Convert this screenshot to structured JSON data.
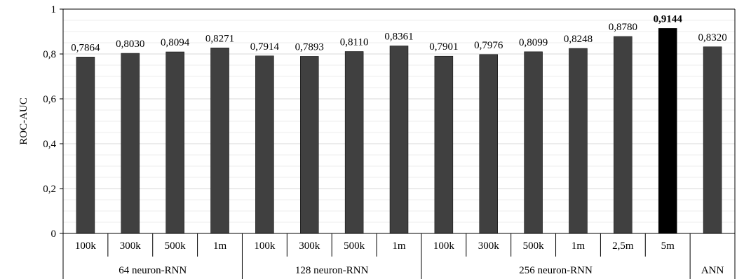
{
  "chart_data": {
    "type": "bar",
    "title": "",
    "ylabel": "ROC-AUC",
    "xlabel": "",
    "ylim": [
      0,
      1
    ],
    "y_ticks": [
      "0",
      "0,2",
      "0,4",
      "0,6",
      "0,8",
      "1"
    ],
    "y_tick_values": [
      0,
      0.2,
      0.4,
      0.6,
      0.8,
      1.0
    ],
    "minor_gridlines": true,
    "legend": "none",
    "colors": {
      "bar": "#404040",
      "highlight": "#000000",
      "grid": "#d9d9d9"
    },
    "groups": [
      {
        "label": "64 neuron-RNN",
        "count": 4
      },
      {
        "label": "128 neuron-RNN",
        "count": 4
      },
      {
        "label": "256 neuron-RNN",
        "count": 6
      },
      {
        "label": "ANN",
        "count": 1
      }
    ],
    "categories": [
      "100k",
      "300k",
      "500k",
      "1m",
      "100k",
      "300k",
      "500k",
      "1m",
      "100k",
      "300k",
      "500k",
      "1m",
      "2,5m",
      "5m",
      ""
    ],
    "values": [
      0.7864,
      0.803,
      0.8094,
      0.8271,
      0.7914,
      0.7893,
      0.811,
      0.8361,
      0.7901,
      0.7976,
      0.8099,
      0.8248,
      0.878,
      0.9144,
      0.832
    ],
    "value_labels": [
      "0,7864",
      "0,8030",
      "0,8094",
      "0,8271",
      "0,7914",
      "0,7893",
      "0,8110",
      "0,8361",
      "0,7901",
      "0,7976",
      "0,8099",
      "0,8248",
      "0,8780",
      "0,9144",
      "0,8320"
    ],
    "highlight_index": 13
  }
}
